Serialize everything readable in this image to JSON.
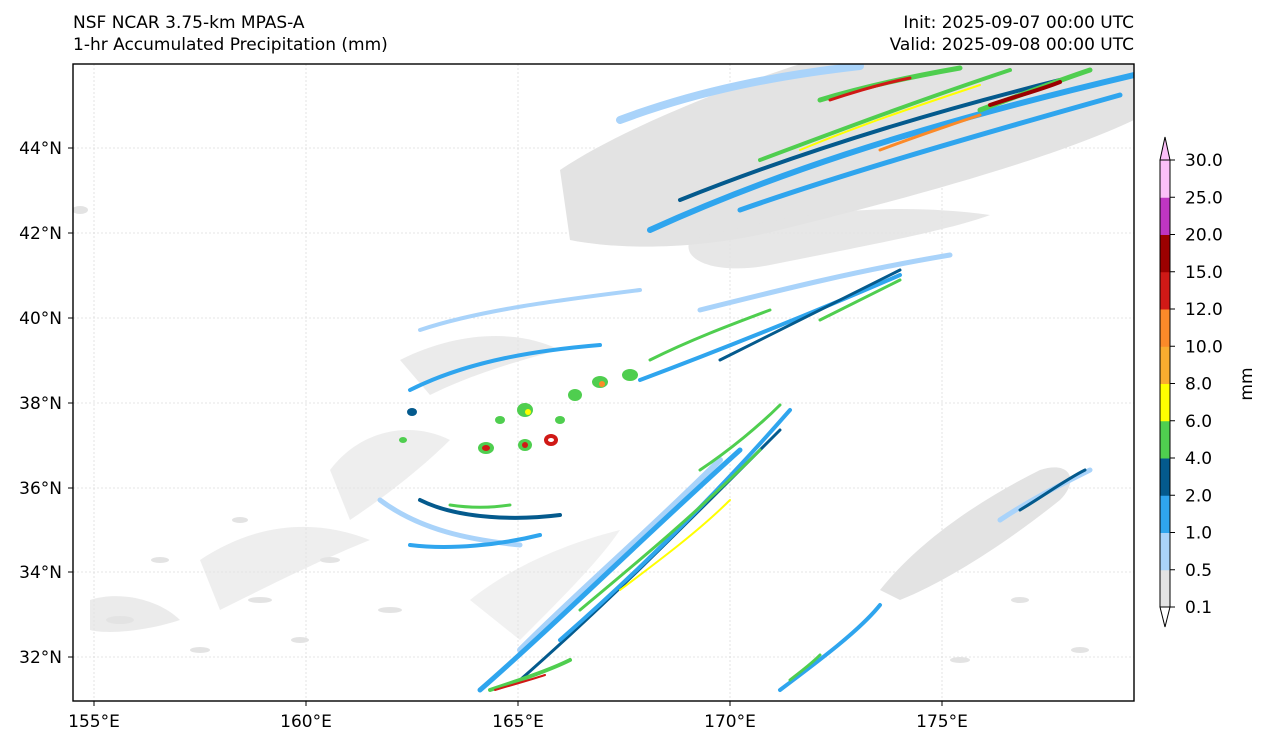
{
  "header": {
    "model_title": "NSF NCAR 3.75-km MPAS-A",
    "field_title": "1-hr Accumulated Precipitation (mm)",
    "init_label": "Init: 2025-09-07 00:00 UTC",
    "valid_label": "Valid: 2025-09-08 00:00 UTC"
  },
  "map": {
    "lon_ticks": [
      "155°E",
      "160°E",
      "165°E",
      "170°E",
      "175°E"
    ],
    "lat_ticks": [
      "44°N",
      "42°N",
      "40°N",
      "38°N",
      "36°N",
      "34°N",
      "32°N"
    ]
  },
  "colorbar": {
    "unit_label": "mm",
    "levels": [
      "0.1",
      "0.5",
      "1.0",
      "2.0",
      "4.0",
      "6.0",
      "8.0",
      "10.0",
      "12.0",
      "15.0",
      "20.0",
      "25.0",
      "30.0"
    ],
    "colors": [
      "#e3e3e3",
      "#a9d3fa",
      "#2fa5ee",
      "#045a8d",
      "#4fce4f",
      "#ffff00",
      "#f9ac2f",
      "#fb8a29",
      "#d01916",
      "#9b0000",
      "#bf35c2",
      "#fbbff8"
    ]
  }
}
